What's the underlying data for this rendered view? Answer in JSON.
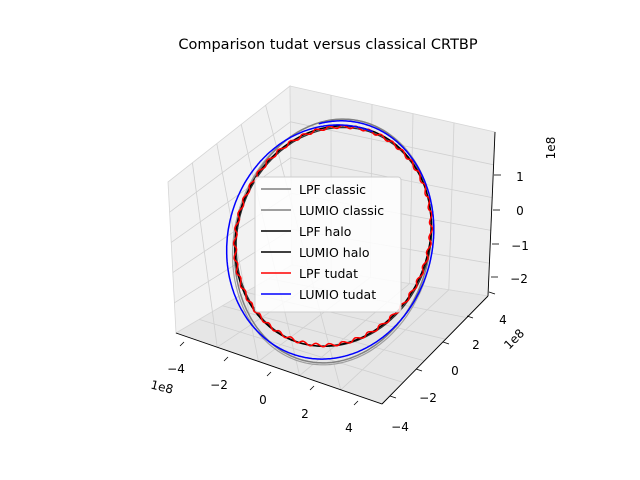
{
  "chart_data": {
    "type": "line",
    "projection": "3d",
    "title": "Comparison tudat versus classical CRTBP",
    "xlabel": "",
    "ylabel": "",
    "zlabel": "",
    "x_ticks": [
      "−4",
      "−2",
      "0",
      "2",
      "4"
    ],
    "y_ticks": [
      "−4",
      "−2",
      "0",
      "2",
      "4"
    ],
    "z_ticks": [
      "−2",
      "−1",
      "0",
      "1"
    ],
    "x_offset": "1e8",
    "y_offset": "1e8",
    "z_offset": "1e8",
    "legend_placement": "center",
    "grid": true,
    "series": [
      {
        "name": "LPF classic",
        "color": "#808080"
      },
      {
        "name": "LUMIO classic",
        "color": "#808080"
      },
      {
        "name": "LPF halo",
        "color": "#000000"
      },
      {
        "name": "LUMIO halo",
        "color": "#000000"
      },
      {
        "name": "LPF tudat",
        "color": "#ff0000"
      },
      {
        "name": "LUMIO tudat",
        "color": "#0000ff"
      }
    ]
  }
}
